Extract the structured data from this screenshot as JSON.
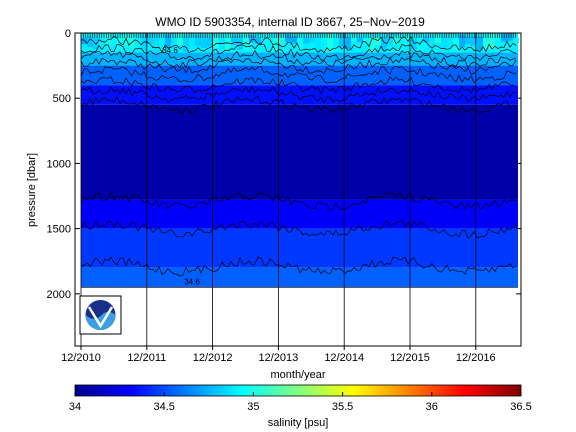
{
  "chart_data": {
    "type": "heatmap",
    "title": "WMO ID 5903354, internal ID 3667, 25−Nov−2019",
    "xlabel": "month/year",
    "ylabel": "pressure [dbar]",
    "x_ticks": [
      "12/2010",
      "12/2011",
      "12/2012",
      "12/2013",
      "12/2014",
      "12/2015",
      "12/2016"
    ],
    "y_ticks": [
      "0",
      "500",
      "1000",
      "1500",
      "2000"
    ],
    "y_tick_values": [
      0,
      500,
      1000,
      1500,
      2000
    ],
    "ylim": [
      2400,
      0
    ],
    "y_reversed": true,
    "x_range_years": [
      2010.92,
      2017.25
    ],
    "max_profile_depth_dbar": 1950,
    "contour_labels": [
      "34.6",
      "34.6"
    ],
    "colorbar": {
      "label": "salinity [psu]",
      "range": [
        34,
        36.5
      ],
      "ticks": [
        "34",
        "34.5",
        "35",
        "35.5",
        "36",
        "36.5"
      ],
      "colormap": "jet"
    },
    "salinity_layers": [
      {
        "top_dbar": 0,
        "bottom_dbar": 150,
        "value": 34.9
      },
      {
        "top_dbar": 150,
        "bottom_dbar": 250,
        "value": 34.75
      },
      {
        "top_dbar": 250,
        "bottom_dbar": 400,
        "value": 34.55
      },
      {
        "top_dbar": 400,
        "bottom_dbar": 550,
        "value": 34.35
      },
      {
        "top_dbar": 550,
        "bottom_dbar": 1280,
        "value": 34.1
      },
      {
        "top_dbar": 1280,
        "bottom_dbar": 1500,
        "value": 34.3
      },
      {
        "top_dbar": 1500,
        "bottom_dbar": 1800,
        "value": 34.45
      },
      {
        "top_dbar": 1800,
        "bottom_dbar": 1950,
        "value": 34.55
      }
    ],
    "logo": "noaa-logo"
  }
}
